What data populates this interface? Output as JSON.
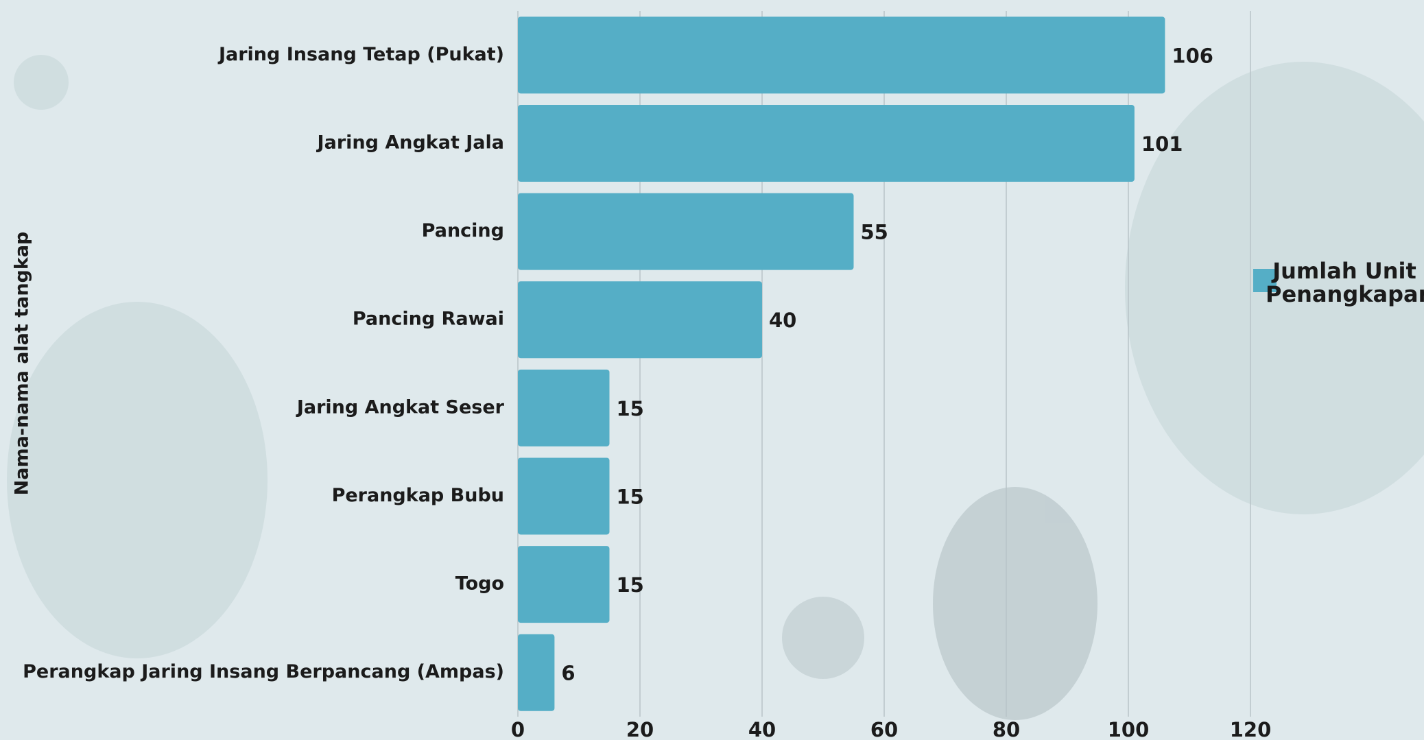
{
  "chart_data": {
    "type": "bar",
    "orientation": "horizontal",
    "y_label": "Nama-nama alat tangkap",
    "categories": [
      "Jaring Insang Tetap (Pukat)",
      "Jaring Angkat Jala",
      "Pancing",
      "Pancing Rawai",
      "Jaring Angkat Seser",
      "Perangkap Bubu",
      "Togo",
      "Perangkap Jaring Insang Berpancang (Ampas)"
    ],
    "series": [
      {
        "name": "Jumlah Unit Penangkapan",
        "color": "#55aec6",
        "values": [
          106,
          101,
          55,
          40,
          15,
          15,
          15,
          6
        ]
      }
    ],
    "xlim": [
      0,
      120
    ],
    "xticks": [
      0,
      20,
      40,
      60,
      80,
      100,
      120
    ],
    "grid": true,
    "legend": "right"
  }
}
